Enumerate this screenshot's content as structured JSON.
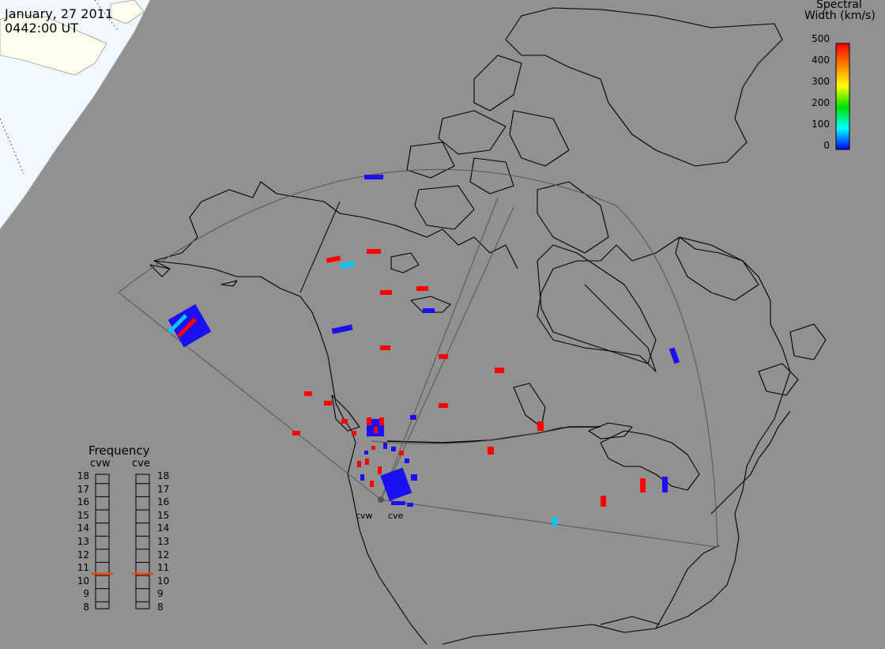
{
  "header": {
    "date": "January, 27 2011",
    "time": "0442:00 UT"
  },
  "colorbar": {
    "title_line1": "Spectral",
    "title_line2": "Width (km/s)",
    "ticks": [
      "500",
      "400",
      "300",
      "200",
      "100",
      "0"
    ],
    "stops": [
      "#ff0000",
      "#ff7f00",
      "#ffff00",
      "#00e000",
      "#00ffff",
      "#0000ff"
    ]
  },
  "frequency_panel": {
    "title": "Frequency",
    "radars": [
      {
        "name": "cvw",
        "frequency_mhz": 10.6
      },
      {
        "name": "cve",
        "frequency_mhz": 10.6
      }
    ],
    "ticks": [
      "18",
      "17",
      "16",
      "15",
      "14",
      "13",
      "12",
      "11",
      "10",
      "9",
      "8"
    ]
  },
  "radars": {
    "west_label": "cvw",
    "east_label": "cve"
  },
  "colors": {
    "ocean_land": "#919191",
    "daylight": "#f0f9ff",
    "coastline": "#000000",
    "fov_outline": "#555555",
    "scatter_low": "#1a10f0",
    "scatter_high": "#ff0000",
    "scatter_mid": "#00c8ff",
    "frequency_marker": "#ff4400"
  }
}
